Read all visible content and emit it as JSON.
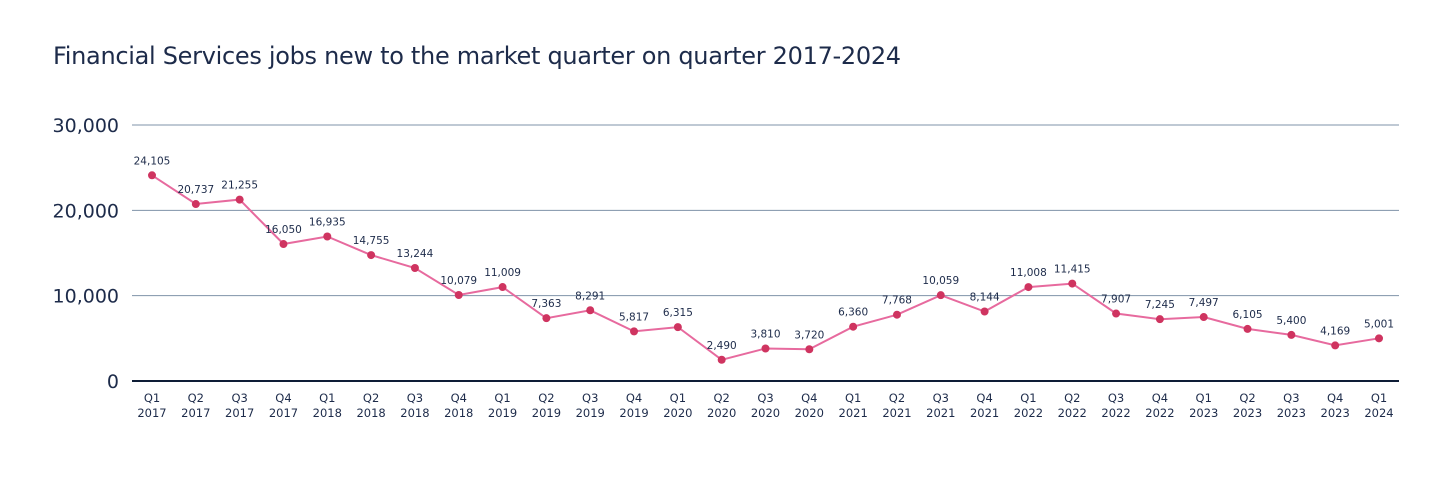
{
  "chart_data": {
    "type": "line",
    "title": "Financial Services jobs new to the market quarter on quarter 2017-2024",
    "xlabel": "",
    "ylabel": "",
    "ylim": [
      0,
      30000
    ],
    "yticks": [
      0,
      10000,
      20000,
      30000
    ],
    "ytick_labels": [
      "0",
      "10,000",
      "20,000",
      "30,000"
    ],
    "grid": true,
    "colors": {
      "line": "#e76a9e",
      "marker": "#cf3460",
      "grid": "#7f93a8",
      "axis": "#0e1d36",
      "text": "#1d2b4a"
    },
    "categories": [
      [
        "Q1",
        "2017"
      ],
      [
        "Q2",
        "2017"
      ],
      [
        "Q3",
        "2017"
      ],
      [
        "Q4",
        "2017"
      ],
      [
        "Q1",
        "2018"
      ],
      [
        "Q2",
        "2018"
      ],
      [
        "Q3",
        "2018"
      ],
      [
        "Q4",
        "2018"
      ],
      [
        "Q1",
        "2019"
      ],
      [
        "Q2",
        "2019"
      ],
      [
        "Q3",
        "2019"
      ],
      [
        "Q4",
        "2019"
      ],
      [
        "Q1",
        "2020"
      ],
      [
        "Q2",
        "2020"
      ],
      [
        "Q3",
        "2020"
      ],
      [
        "Q4",
        "2020"
      ],
      [
        "Q1",
        "2021"
      ],
      [
        "Q2",
        "2021"
      ],
      [
        "Q3",
        "2021"
      ],
      [
        "Q4",
        "2021"
      ],
      [
        "Q1",
        "2022"
      ],
      [
        "Q2",
        "2022"
      ],
      [
        "Q3",
        "2022"
      ],
      [
        "Q4",
        "2022"
      ],
      [
        "Q1",
        "2023"
      ],
      [
        "Q2",
        "2023"
      ],
      [
        "Q3",
        "2023"
      ],
      [
        "Q4",
        "2023"
      ],
      [
        "Q1",
        "2024"
      ]
    ],
    "series": [
      {
        "values": [
          24105,
          20737,
          21255,
          16050,
          16935,
          14755,
          13244,
          10079,
          11009,
          7363,
          8291,
          5817,
          6315,
          2490,
          3810,
          3720,
          6360,
          7768,
          10059,
          8144,
          11008,
          11415,
          7907,
          7245,
          7497,
          6105,
          5400,
          4169,
          5001
        ],
        "labels": [
          "24,105",
          "20,737",
          "21,255",
          "16,050",
          "16,935",
          "14,755",
          "13,244",
          "10,079",
          "11,009",
          "7,363",
          "8,291",
          "5,817",
          "6,315",
          "2,490",
          "3,810",
          "3,720",
          "6,360",
          "7,768",
          "10,059",
          "8,144",
          "11,008",
          "11,415",
          "7,907",
          "7,245",
          "7,497",
          "6,105",
          "5,400",
          "4,169",
          "5,001"
        ]
      }
    ]
  }
}
